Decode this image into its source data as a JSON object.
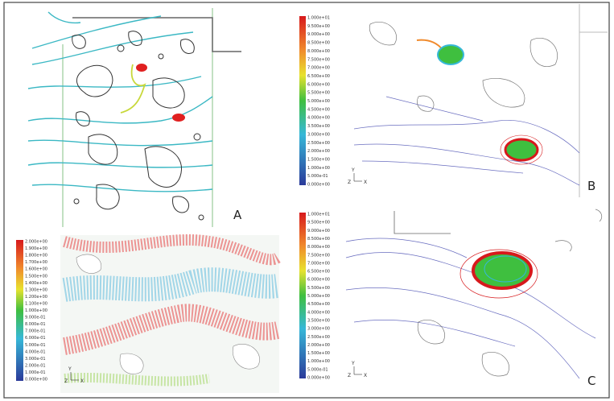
{
  "panels": {
    "a": {
      "label": "A"
    },
    "b": {
      "label": "B",
      "colorbar": [
        "1.000e+01",
        "9.500e+00",
        "9.000e+00",
        "8.500e+00",
        "8.000e+00",
        "7.500e+00",
        "7.000e+00",
        "6.500e+00",
        "6.000e+00",
        "5.500e+00",
        "5.000e+00",
        "4.500e+00",
        "4.000e+00",
        "3.500e+00",
        "3.000e+00",
        "2.500e+00",
        "2.000e+00",
        "1.500e+00",
        "1.000e+00",
        "5.000e-01",
        "0.000e+00"
      ],
      "axes": {
        "y": "Y",
        "z": "Z",
        "x": "X"
      }
    },
    "c": {
      "label": "C",
      "colorbar": [
        "1.000e+01",
        "9.500e+00",
        "9.000e+00",
        "8.500e+00",
        "8.000e+00",
        "7.500e+00",
        "7.000e+00",
        "6.500e+00",
        "6.000e+00",
        "5.500e+00",
        "5.000e+00",
        "4.500e+00",
        "4.000e+00",
        "3.500e+00",
        "3.000e+00",
        "2.500e+00",
        "2.000e+00",
        "1.500e+00",
        "1.000e+00",
        "5.000e-01",
        "0.000e+00"
      ],
      "axes": {
        "y": "Y",
        "z": "Z",
        "x": "X"
      }
    },
    "d": {
      "colorbar": [
        "2.000e+00",
        "1.900e+00",
        "1.800e+00",
        "1.700e+00",
        "1.600e+00",
        "1.500e+00",
        "1.400e+00",
        "1.300e+00",
        "1.200e+00",
        "1.100e+00",
        "1.000e+00",
        "9.000e-01",
        "8.000e-01",
        "7.000e-01",
        "6.000e-01",
        "5.000e-01",
        "4.000e-01",
        "3.000e-01",
        "2.000e-01",
        "1.000e-01",
        "0.000e+00"
      ],
      "axes": {
        "y": "Y",
        "z": "Z",
        "x": "X"
      }
    }
  }
}
